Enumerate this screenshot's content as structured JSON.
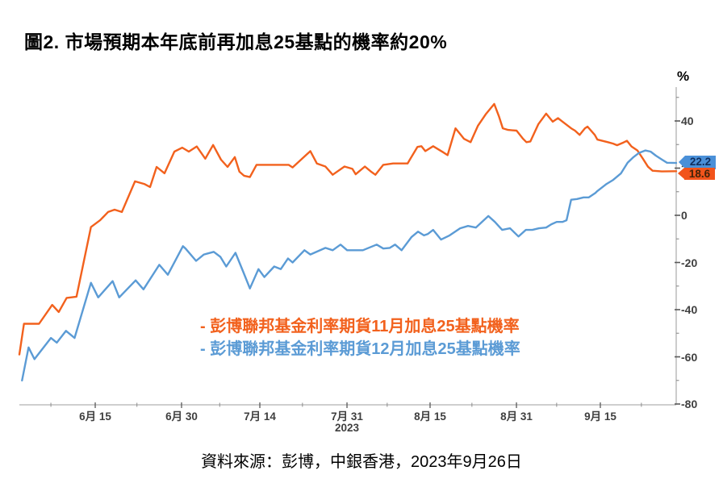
{
  "title": "圖2. 市場預期本年底前再加息25基點的機率約20%",
  "source_note": "資料來源：彭博，中銀香港，2023年9月26日",
  "colors": {
    "orange_series": "#F2611D",
    "blue_series": "#5B9BD5",
    "axis_line": "#BFBFBF",
    "tick_mark": "#595959",
    "tick_label": "#3F3F3F",
    "callout_blue_bg": "#4A90D8",
    "callout_blue_text": "#0F2F5F",
    "callout_orange_bg": "#F2541B",
    "callout_orange_text": "#42230A"
  },
  "chart_data": {
    "type": "line",
    "title": "圖2. 市場預期本年底前再加息25基點的機率約20%",
    "ylabel": "%",
    "grid": false,
    "legend_position": "center-inside",
    "legend": [
      "- 彭博聯邦基金利率期貨11月加息25基點機率",
      "- 彭博聯邦基金利率期貨12月加息25基點機率"
    ],
    "y_axis": {
      "unit_label": "%",
      "range": [
        -81,
        55
      ],
      "major_ticks": [
        40,
        20,
        0,
        -20,
        -40,
        -60,
        -80
      ],
      "minor_ticks": [
        50,
        30,
        10,
        -10,
        -30,
        -50,
        -70
      ]
    },
    "x_axis": {
      "year_label": "2023",
      "year_tick_index": 3,
      "ticks": [
        {
          "label": "6月 15",
          "f": 0.1155
        },
        {
          "label": "6月 30",
          "f": 0.2469
        },
        {
          "label": "7月 14",
          "f": 0.3661
        },
        {
          "label": "7月 31",
          "f": 0.4988
        },
        {
          "label": "8月 15",
          "f": 0.6253
        },
        {
          "label": "8月 31",
          "f": 0.7568
        },
        {
          "label": "9月 15",
          "f": 0.8845
        }
      ],
      "minor_tick_f": [
        0.048,
        0.179,
        0.305,
        0.431,
        0.56,
        0.689,
        0.818,
        0.947
      ]
    },
    "series": [
      {
        "name": "彭博聯邦基金利率期貨11月加息25基點機率",
        "color": "#F2611D",
        "end_label": "18.6",
        "points": [
          [
            0.0,
            -59.0
          ],
          [
            0.007,
            -46.0
          ],
          [
            0.03,
            -46.0
          ],
          [
            0.05,
            -38.0
          ],
          [
            0.06,
            -41.0
          ],
          [
            0.072,
            -35.0
          ],
          [
            0.087,
            -34.5
          ],
          [
            0.109,
            -5.0
          ],
          [
            0.123,
            -2.1
          ],
          [
            0.135,
            1.4
          ],
          [
            0.145,
            2.4
          ],
          [
            0.156,
            1.4
          ],
          [
            0.176,
            14.4
          ],
          [
            0.19,
            13.3
          ],
          [
            0.199,
            12.0
          ],
          [
            0.209,
            20.5
          ],
          [
            0.221,
            17.8
          ],
          [
            0.236,
            27.0
          ],
          [
            0.248,
            28.7
          ],
          [
            0.258,
            27.0
          ],
          [
            0.27,
            29.2
          ],
          [
            0.283,
            24.0
          ],
          [
            0.295,
            29.8
          ],
          [
            0.307,
            23.6
          ],
          [
            0.317,
            20.5
          ],
          [
            0.328,
            24.7
          ],
          [
            0.335,
            18.5
          ],
          [
            0.342,
            16.8
          ],
          [
            0.351,
            16.2
          ],
          [
            0.361,
            21.4
          ],
          [
            0.41,
            21.4
          ],
          [
            0.416,
            20.3
          ],
          [
            0.443,
            27.2
          ],
          [
            0.453,
            22.0
          ],
          [
            0.466,
            20.7
          ],
          [
            0.477,
            17.2
          ],
          [
            0.495,
            20.7
          ],
          [
            0.507,
            19.7
          ],
          [
            0.512,
            17.4
          ],
          [
            0.526,
            20.7
          ],
          [
            0.535,
            18.6
          ],
          [
            0.542,
            17.2
          ],
          [
            0.554,
            21.4
          ],
          [
            0.569,
            22.0
          ],
          [
            0.591,
            22.0
          ],
          [
            0.606,
            29.0
          ],
          [
            0.612,
            29.3
          ],
          [
            0.618,
            27.2
          ],
          [
            0.63,
            29.3
          ],
          [
            0.646,
            26.6
          ],
          [
            0.652,
            25.5
          ],
          [
            0.664,
            36.9
          ],
          [
            0.671,
            34.5
          ],
          [
            0.677,
            32.4
          ],
          [
            0.687,
            31.0
          ],
          [
            0.698,
            37.9
          ],
          [
            0.71,
            42.8
          ],
          [
            0.723,
            47.2
          ],
          [
            0.73,
            42.1
          ],
          [
            0.736,
            36.9
          ],
          [
            0.744,
            36.2
          ],
          [
            0.757,
            35.9
          ],
          [
            0.767,
            32.4
          ],
          [
            0.772,
            31.0
          ],
          [
            0.778,
            31.3
          ],
          [
            0.79,
            38.6
          ],
          [
            0.802,
            43.1
          ],
          [
            0.812,
            39.7
          ],
          [
            0.82,
            41.2
          ],
          [
            0.827,
            39.7
          ],
          [
            0.84,
            36.9
          ],
          [
            0.846,
            35.9
          ],
          [
            0.853,
            34.1
          ],
          [
            0.861,
            36.9
          ],
          [
            0.865,
            37.6
          ],
          [
            0.876,
            34.1
          ],
          [
            0.88,
            32.1
          ],
          [
            0.896,
            31.0
          ],
          [
            0.904,
            30.4
          ],
          [
            0.91,
            29.7
          ],
          [
            0.92,
            30.9
          ],
          [
            0.925,
            31.6
          ],
          [
            0.932,
            29.2
          ],
          [
            0.941,
            27.5
          ],
          [
            0.95,
            23.7
          ],
          [
            0.957,
            20.6
          ],
          [
            0.964,
            18.9
          ],
          [
            0.978,
            18.6
          ],
          [
            1.0,
            18.7
          ]
        ]
      },
      {
        "name": "彭博聯邦基金利率期貨12月加息25基點機率",
        "color": "#5B9BD5",
        "end_label": "22.2",
        "points": [
          [
            0.004,
            -70.0
          ],
          [
            0.014,
            -56.0
          ],
          [
            0.023,
            -61.0
          ],
          [
            0.048,
            -52.0
          ],
          [
            0.057,
            -54.0
          ],
          [
            0.071,
            -49.0
          ],
          [
            0.084,
            -52.0
          ],
          [
            0.109,
            -28.6
          ],
          [
            0.12,
            -34.8
          ],
          [
            0.142,
            -27.9
          ],
          [
            0.152,
            -34.8
          ],
          [
            0.177,
            -27.6
          ],
          [
            0.189,
            -31.4
          ],
          [
            0.213,
            -21.0
          ],
          [
            0.226,
            -25.2
          ],
          [
            0.249,
            -13.1
          ],
          [
            0.253,
            -14.1
          ],
          [
            0.269,
            -19.3
          ],
          [
            0.281,
            -16.6
          ],
          [
            0.296,
            -15.5
          ],
          [
            0.306,
            -17.6
          ],
          [
            0.315,
            -21.7
          ],
          [
            0.329,
            -15.9
          ],
          [
            0.341,
            -24.1
          ],
          [
            0.351,
            -31.0
          ],
          [
            0.364,
            -22.8
          ],
          [
            0.373,
            -26.2
          ],
          [
            0.388,
            -21.7
          ],
          [
            0.398,
            -22.8
          ],
          [
            0.409,
            -18.3
          ],
          [
            0.416,
            -20.0
          ],
          [
            0.434,
            -14.8
          ],
          [
            0.443,
            -16.6
          ],
          [
            0.466,
            -13.8
          ],
          [
            0.477,
            -14.8
          ],
          [
            0.489,
            -12.4
          ],
          [
            0.499,
            -14.8
          ],
          [
            0.523,
            -14.8
          ],
          [
            0.544,
            -12.4
          ],
          [
            0.554,
            -14.1
          ],
          [
            0.564,
            -13.8
          ],
          [
            0.572,
            -12.4
          ],
          [
            0.582,
            -14.8
          ],
          [
            0.597,
            -9.2
          ],
          [
            0.607,
            -6.9
          ],
          [
            0.616,
            -8.5
          ],
          [
            0.622,
            -7.9
          ],
          [
            0.63,
            -6.2
          ],
          [
            0.642,
            -10.3
          ],
          [
            0.655,
            -8.5
          ],
          [
            0.671,
            -5.5
          ],
          [
            0.683,
            -4.5
          ],
          [
            0.695,
            -5.2
          ],
          [
            0.714,
            -0.3
          ],
          [
            0.724,
            -2.8
          ],
          [
            0.735,
            -6.2
          ],
          [
            0.747,
            -5.5
          ],
          [
            0.76,
            -9.0
          ],
          [
            0.771,
            -6.2
          ],
          [
            0.781,
            -6.2
          ],
          [
            0.791,
            -5.5
          ],
          [
            0.802,
            -5.2
          ],
          [
            0.81,
            -3.8
          ],
          [
            0.818,
            -2.8
          ],
          [
            0.827,
            -2.8
          ],
          [
            0.833,
            -2.1
          ],
          [
            0.84,
            6.6
          ],
          [
            0.849,
            6.9
          ],
          [
            0.859,
            7.6
          ],
          [
            0.867,
            7.6
          ],
          [
            0.877,
            9.5
          ],
          [
            0.88,
            10.3
          ],
          [
            0.894,
            13.3
          ],
          [
            0.904,
            15.0
          ],
          [
            0.916,
            17.8
          ],
          [
            0.926,
            22.3
          ],
          [
            0.935,
            24.7
          ],
          [
            0.943,
            26.4
          ],
          [
            0.953,
            27.5
          ],
          [
            0.961,
            27.0
          ],
          [
            0.969,
            25.3
          ],
          [
            0.978,
            23.7
          ],
          [
            0.986,
            22.3
          ],
          [
            1.0,
            22.2
          ]
        ]
      }
    ]
  }
}
